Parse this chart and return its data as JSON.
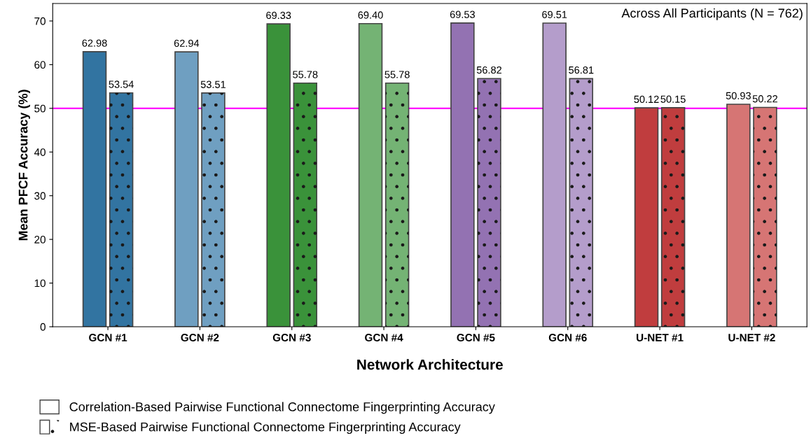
{
  "chart_data": {
    "type": "bar",
    "xlabel": "Network Architecture",
    "ylabel": "Mean PFCF Accuracy (%)",
    "categories": [
      "GCN #1",
      "GCN #2",
      "GCN #3",
      "GCN #4",
      "GCN #5",
      "GCN #6",
      "U-NET #1",
      "U-NET #2"
    ],
    "series": [
      {
        "name": "Correlation-Based Pairwise Functional Connectome Fingerprinting Accuracy",
        "colors": [
          "#3274a1",
          "#6f9fc1",
          "#3a923a",
          "#74b374",
          "#9372b2",
          "#b49dcb",
          "#c03d3e",
          "#d67574"
        ],
        "values": [
          62.98,
          62.94,
          69.33,
          69.4,
          69.53,
          69.51,
          50.12,
          50.93
        ],
        "value_labels": [
          "62.98",
          "62.94",
          "69.33",
          "69.40",
          "69.53",
          "69.51",
          "50.12",
          "50.93"
        ]
      },
      {
        "name": "MSE-Based Pairwise Functional Connectome Fingerprinting Accuracy",
        "colors": [
          "#3274a1",
          "#6f9fc1",
          "#3a923a",
          "#74b374",
          "#9372b2",
          "#b49dcb",
          "#c03d3e",
          "#d67574"
        ],
        "values": [
          53.54,
          53.51,
          55.78,
          55.78,
          56.82,
          56.81,
          50.15,
          50.22
        ],
        "value_labels": [
          "53.54",
          "53.51",
          "55.78",
          "55.78",
          "56.82",
          "56.81",
          "50.15",
          "50.22"
        ]
      }
    ],
    "ylim": [
      0,
      74
    ],
    "yticks": [
      0,
      10,
      20,
      30,
      40,
      50,
      60,
      70
    ],
    "ref_lines": [
      {
        "axis": "y",
        "value": 50,
        "color": "#ff00ff"
      }
    ],
    "annotations": [
      "Across All Participants (N = 762)"
    ],
    "legend": "bottom",
    "grid": false
  }
}
